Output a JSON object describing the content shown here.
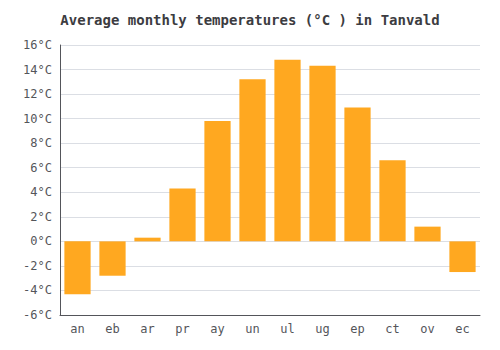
{
  "chart_data": {
    "type": "bar",
    "title": "Average monthly temperatures (°C ) in Tanvald",
    "categories": [
      "an",
      "eb",
      "ar",
      "pr",
      "ay",
      "un",
      "ul",
      "ug",
      "ep",
      "ct",
      "ov",
      "ec"
    ],
    "values": [
      -4.3,
      -2.8,
      0.3,
      4.3,
      9.8,
      13.2,
      14.8,
      14.3,
      10.9,
      6.6,
      1.2,
      -2.5
    ],
    "color": "#FFA820",
    "ylim": [
      -6,
      16
    ],
    "yticks": [
      {
        "value": -6,
        "label": "-6°C"
      },
      {
        "value": -4,
        "label": "-4°C"
      },
      {
        "value": -2,
        "label": "-2°C"
      },
      {
        "value": 0,
        "label": "0°C"
      },
      {
        "value": 2,
        "label": "2°C"
      },
      {
        "value": 4,
        "label": "4°C"
      },
      {
        "value": 6,
        "label": "6°C"
      },
      {
        "value": 8,
        "label": "8°C"
      },
      {
        "value": 10,
        "label": "10°C"
      },
      {
        "value": 12,
        "label": "12°C"
      },
      {
        "value": 14,
        "label": "14°C"
      },
      {
        "value": 16,
        "label": "16°C"
      }
    ],
    "grid": true
  }
}
